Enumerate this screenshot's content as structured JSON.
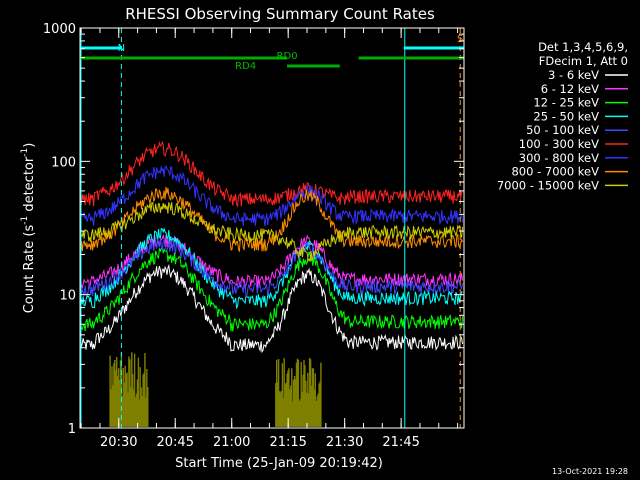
{
  "chart_data": {
    "type": "line",
    "title": "RHESSI Observing Summary Count Rates",
    "xlabel": "Start Time (25-Jan-09 20:19:42)",
    "ylabel_parts": [
      "Count Rate (s",
      "-1",
      " detector",
      "-1",
      ")"
    ],
    "y_scale": "log",
    "ylim": [
      1,
      1000
    ],
    "xlim_minutes": [
      0,
      102
    ],
    "y_ticks": [
      {
        "value": 1,
        "label": "1"
      },
      {
        "value": 10,
        "label": "10"
      },
      {
        "value": 100,
        "label": "100"
      },
      {
        "value": 1000,
        "label": "1000"
      }
    ],
    "x_ticks": [
      {
        "minute": 10.3,
        "label": "20:30"
      },
      {
        "minute": 25.3,
        "label": "20:45"
      },
      {
        "minute": 40.3,
        "label": "21:00"
      },
      {
        "minute": 55.3,
        "label": "21:15"
      },
      {
        "minute": 70.3,
        "label": "21:30"
      },
      {
        "minute": 85.3,
        "label": "21:45"
      }
    ],
    "legend_header": [
      "Det 1,3,4,5,6,9,",
      "FDecim 1, Att 0"
    ],
    "series": [
      {
        "name": "3 - 6 keV",
        "color": "#ffffff",
        "values_night": 4.2,
        "values_peak1": 15,
        "values_peak2": 14
      },
      {
        "name": "6 - 12 keV",
        "color": "#ff33ff",
        "values_night": 12.5,
        "values_peak1": 26,
        "values_peak2": 25
      },
      {
        "name": "12 - 25 keV",
        "color": "#00ff00",
        "values_night": 6,
        "values_peak1": 20,
        "values_peak2": 19
      },
      {
        "name": "25 - 50 keV",
        "color": "#00ffff",
        "values_night": 9,
        "values_peak1": 28,
        "values_peak2": 23
      },
      {
        "name": "50 - 100 keV",
        "color": "#4444ff",
        "values_night": 11,
        "values_peak1": 24,
        "values_peak2": 22
      },
      {
        "name": "100 - 300 keV",
        "color": "#ff2222",
        "values_night": 52,
        "values_peak1": 125,
        "values_peak2": 62
      },
      {
        "name": "300 - 800 keV",
        "color": "#3333ff",
        "values_night": 37,
        "values_peak1": 85,
        "values_peak2": 60
      },
      {
        "name": "800 - 7000 keV",
        "color": "#ff8c00",
        "values_night": 24,
        "values_peak1": 58,
        "values_peak2": 55
      },
      {
        "name": "7000 - 15000 keV",
        "color": "#cccc00",
        "values_night": 28,
        "values_peak1": 46,
        "values_peak2": 20
      }
    ],
    "annotations": [
      {
        "text": "N",
        "color": "#00ffff",
        "minute": 11
      },
      {
        "text": "S",
        "color": "#ff8c00",
        "minute": 101
      },
      {
        "text": "RD0",
        "color": "#00bb00",
        "minute": 55
      },
      {
        "text": "RD4",
        "color": "#00bb00",
        "minute": 44
      }
    ],
    "bars": {
      "cyan_segments": [
        [
          0,
          11
        ],
        [
          86,
          102
        ]
      ],
      "green_segments": [
        [
          0,
          55
        ],
        [
          74,
          102
        ]
      ],
      "green_low_segment": [
        55,
        69
      ]
    },
    "markers": {
      "cyan_solid_minutes": [
        0,
        86
      ],
      "cyan_dashed_minute": 11,
      "orange_dashed_minute": 101
    },
    "footer_date": "13-Oct-2021 19:28"
  },
  "colors": {
    "background": "#000000",
    "axes": "#ffffff",
    "att_state": "#808000"
  }
}
